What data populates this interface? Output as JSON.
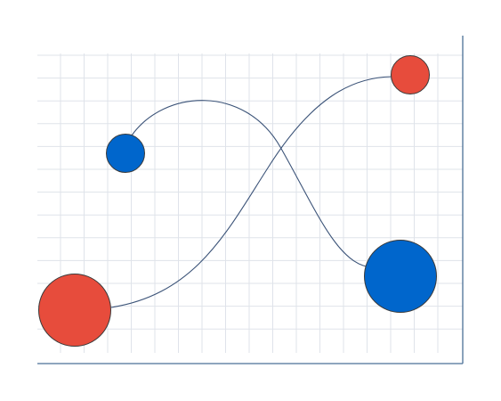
{
  "colors": {
    "background": "#ffffff",
    "grid": "#dfe3ea",
    "axis": "#4a6f96",
    "curve": "#3b5378",
    "node_red": "#e74c3c",
    "node_blue": "#0066cc",
    "node_outline": "#3a3a3a"
  },
  "nodes": [
    {
      "name": "small-red-node",
      "color_key": "node_red"
    },
    {
      "name": "small-blue-node",
      "color_key": "node_blue"
    },
    {
      "name": "large-red-node",
      "color_key": "node_red"
    },
    {
      "name": "large-blue-node",
      "color_key": "node_blue"
    }
  ],
  "connections": [
    {
      "name": "curve-small-blue-to-large-blue",
      "from": "small-blue-node",
      "to": "large-blue-node"
    },
    {
      "name": "curve-large-red-to-small-red",
      "from": "large-red-node",
      "to": "small-red-node"
    }
  ]
}
